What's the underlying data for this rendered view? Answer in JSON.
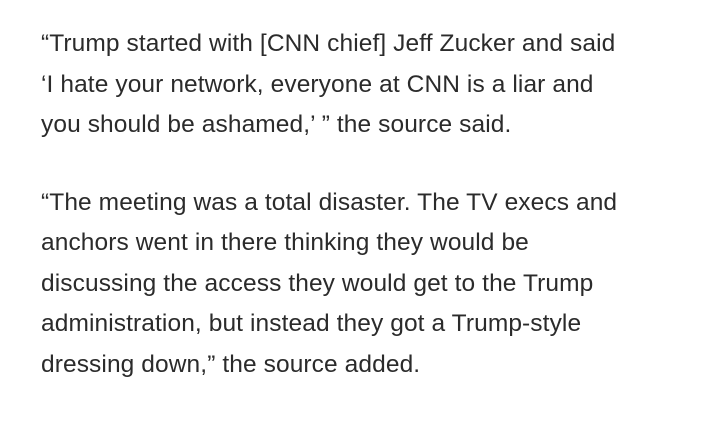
{
  "article": {
    "paragraphs": [
      {
        "lines": [
          "“Trump started with [CNN chief] Jeff Zucker and said",
          "‘I hate your network, everyone at CNN is a liar and",
          "you should be ashamed,’ ” the source said."
        ]
      },
      {
        "lines": [
          "“The meeting was a total disaster. The TV execs and",
          "anchors went in there thinking they would be",
          "discussing the access they would get to the Trump",
          "administration, but instead they got a Trump-style",
          "dressing down,” the source added."
        ]
      }
    ]
  }
}
